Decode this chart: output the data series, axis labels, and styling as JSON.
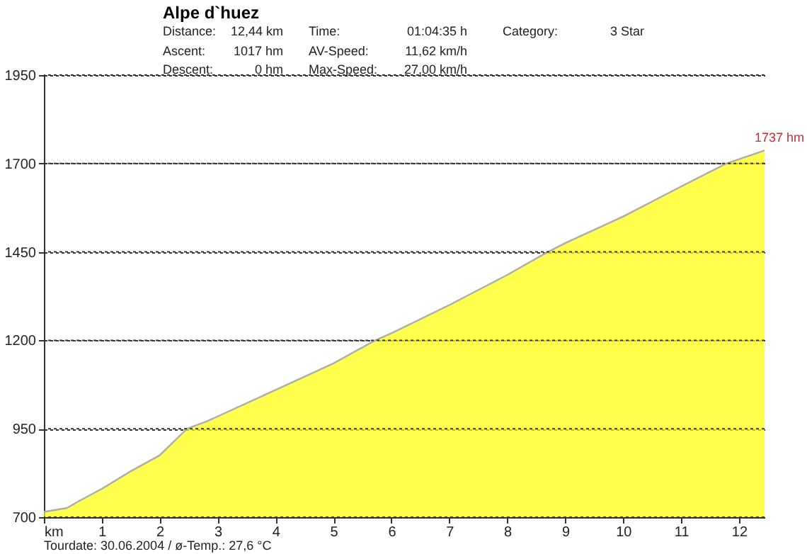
{
  "chart_data": {
    "type": "area",
    "title": "Alpe d`huez",
    "x": [
      0,
      0.4,
      0.6,
      1,
      1.5,
      2,
      2.47,
      2.8,
      3,
      4,
      5,
      5.72,
      6,
      7,
      8,
      8.7,
      9,
      10,
      11,
      11.78,
      12.44
    ],
    "series": [
      {
        "color": "#ffff00",
        "values": [
          715,
          726,
          745,
          780,
          830,
          875,
          950,
          970,
          985,
          1060,
          1135,
          1200,
          1220,
          1300,
          1385,
          1450,
          1475,
          1550,
          1635,
          1700,
          1737
        ]
      }
    ],
    "xlim": [
      0,
      12.44
    ],
    "xticks": [
      {
        "value": 0,
        "label": "km"
      },
      1,
      2,
      3,
      4,
      5,
      6,
      7,
      8,
      9,
      10,
      11,
      12
    ],
    "ylim": [
      700,
      1950
    ],
    "yticks": [
      700,
      950,
      1200,
      1450,
      1700,
      1950
    ],
    "grid": "y",
    "annotations": [
      "Distance:",
      "12,44 km",
      "Time:",
      "01:04:35 h",
      "Category:",
      "3 Star",
      "Ascent:",
      "1017 hm",
      "AV-Speed:",
      "11,62 km/h",
      "Descent:",
      "0 hm",
      "Max-Speed:",
      "27,00 km/h",
      "Tourdate: 30.06.2004  /  ø-Temp.: 27,6 °C",
      {
        "text": "1737 hm",
        "x": 12.44,
        "y": 1737
      }
    ]
  }
}
